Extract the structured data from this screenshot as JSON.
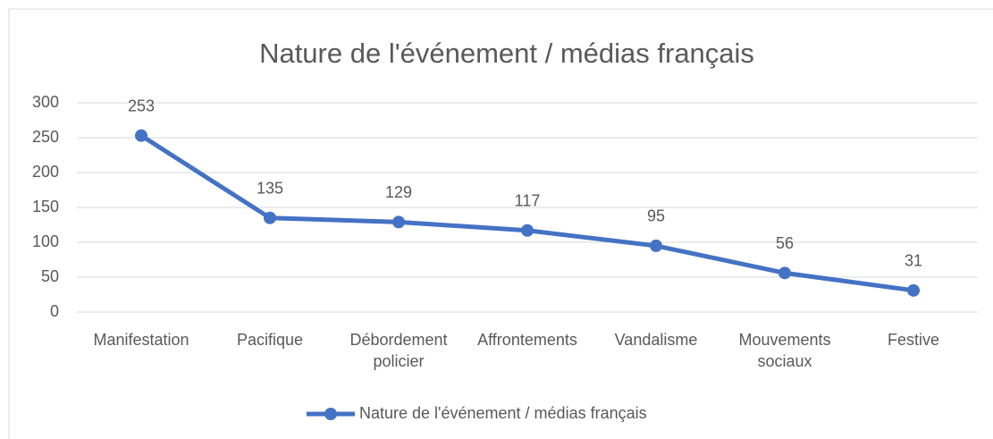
{
  "chart_data": {
    "type": "line",
    "title": "Nature de l'événement / médias français",
    "categories": [
      "Manifestation",
      "Pacifique",
      "Débordement policier",
      "Affrontements",
      "Vandalisme",
      "Mouvements sociaux",
      "Festive"
    ],
    "series": [
      {
        "name": "Nature de l'événement / médias français",
        "color": "#4472c4",
        "values": [
          253,
          135,
          129,
          117,
          95,
          56,
          31
        ]
      }
    ],
    "ylim": [
      0,
      300
    ],
    "yticks": [
      0,
      50,
      100,
      150,
      200,
      250,
      300
    ],
    "grid": true,
    "legend": "bottom"
  }
}
